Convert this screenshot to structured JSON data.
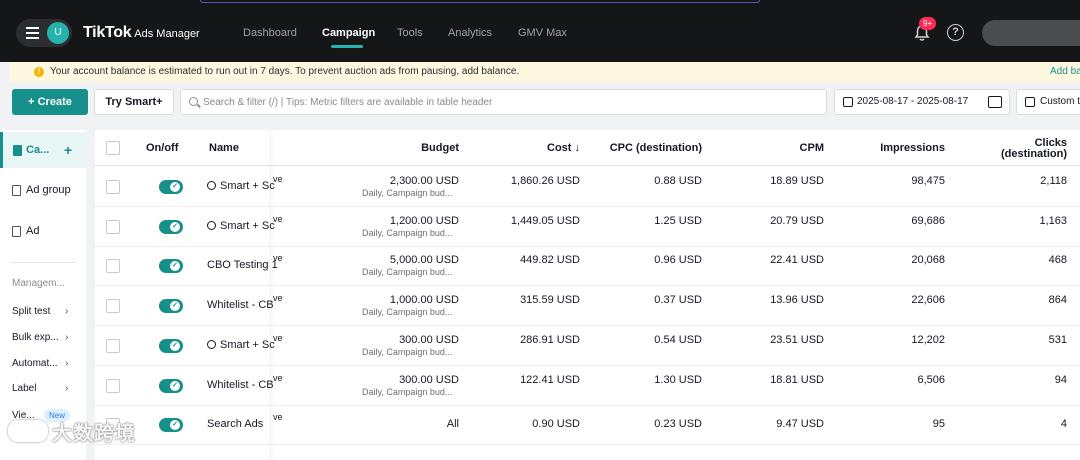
{
  "topbar": {
    "avatar_letter": "U",
    "brand": "TikTok",
    "brand_sub": "Ads Manager",
    "nav": [
      "Dashboard",
      "Campaign",
      "Tools",
      "Analytics",
      "GMV Max"
    ],
    "active_nav": "Campaign",
    "notification_count": "9+",
    "help_symbol": "?"
  },
  "alert": {
    "icon": "!",
    "message": "Your account balance is estimated to run out in 7 days. To prevent auction ads from pausing, add balance.",
    "link": "Add ba"
  },
  "toolbar": {
    "create_label": "+ Create",
    "smart_label": "Try Smart+",
    "search_placeholder": "Search & filter (/) | Tips: Metric filters are available in table header",
    "date_range": "2025-08-17 - 2025-08-17",
    "custom_label": "Custom t"
  },
  "sidebar": {
    "items": [
      {
        "label": "Ca...",
        "active": true
      },
      {
        "label": "Ad group",
        "active": false
      },
      {
        "label": "Ad",
        "active": false
      }
    ],
    "plus": "+",
    "section": "Managem...",
    "links": [
      "Split test",
      "Bulk exp...",
      "Automat...",
      "Label",
      "Vie..."
    ],
    "chevron": "›",
    "new_badge": "New"
  },
  "table": {
    "headers": {
      "onoff": "On/off",
      "name": "Name",
      "budget": "Budget",
      "cost": "Cost ↓",
      "cpc": "CPC (destination)",
      "cpm": "CPM",
      "impressions": "Impressions",
      "clicks_line1": "Clicks",
      "clicks_line2": "(destination)"
    },
    "rows": [
      {
        "name": "Smart + Sc",
        "suffix": "ve",
        "smart": true,
        "budget": "2,300.00 USD",
        "budget_sub": "Daily, Campaign bud...",
        "cost": "1,860.26 USD",
        "cpc": "0.88 USD",
        "cpm": "18.89 USD",
        "impressions": "98,475",
        "clicks": "2,118"
      },
      {
        "name": "Smart + Sc",
        "suffix": "ve",
        "smart": true,
        "budget": "1,200.00 USD",
        "budget_sub": "Daily, Campaign bud...",
        "cost": "1,449.05 USD",
        "cpc": "1.25 USD",
        "cpm": "20.79 USD",
        "impressions": "69,686",
        "clicks": "1,163"
      },
      {
        "name": "CBO Testing 1",
        "suffix": "ve",
        "smart": false,
        "budget": "5,000.00 USD",
        "budget_sub": "Daily, Campaign bud...",
        "cost": "449.82 USD",
        "cpc": "0.96 USD",
        "cpm": "22.41 USD",
        "impressions": "20,068",
        "clicks": "468"
      },
      {
        "name": "Whitelist - CB",
        "suffix": "ve",
        "smart": false,
        "budget": "1,000.00 USD",
        "budget_sub": "Daily, Campaign bud...",
        "cost": "315.59 USD",
        "cpc": "0.37 USD",
        "cpm": "13.96 USD",
        "impressions": "22,606",
        "clicks": "864"
      },
      {
        "name": "Smart + Sc",
        "suffix": "ve",
        "smart": true,
        "budget": "300.00 USD",
        "budget_sub": "Daily, Campaign bud...",
        "cost": "286.91 USD",
        "cpc": "0.54 USD",
        "cpm": "23.51 USD",
        "impressions": "12,202",
        "clicks": "531"
      },
      {
        "name": "Whitelist - CB",
        "suffix": "ve",
        "smart": false,
        "budget": "300.00 USD",
        "budget_sub": "Daily, Campaign bud...",
        "cost": "122.41 USD",
        "cpc": "1.30 USD",
        "cpm": "18.81 USD",
        "impressions": "6,506",
        "clicks": "94"
      },
      {
        "name": "Search Ads",
        "suffix": "ve",
        "smart": false,
        "budget": "All",
        "budget_sub": "",
        "cost": "0.90 USD",
        "cpc": "0.23 USD",
        "cpm": "9.47 USD",
        "impressions": "95",
        "clicks": "4"
      }
    ]
  },
  "watermark": "大数跨境",
  "colors": {
    "accent": "#178f8a",
    "topbar": "#141618",
    "alert_bg": "#fff8e1",
    "badge": "#fe2c55"
  }
}
